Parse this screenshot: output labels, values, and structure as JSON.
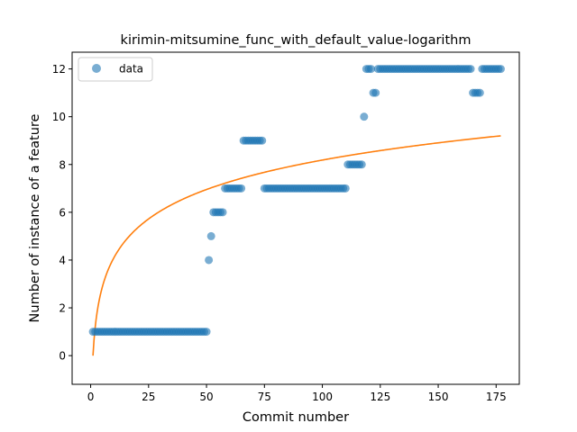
{
  "chart_data": {
    "type": "scatter",
    "title": "kirimin-mitsumine_func_with_default_value-logarithm",
    "xlabel": "Commit number",
    "ylabel": "Number of instance of a feature",
    "xlim": [
      -8,
      185
    ],
    "ylim": [
      -1.2,
      12.7
    ],
    "xticks": [
      0,
      25,
      50,
      75,
      100,
      125,
      150,
      175
    ],
    "yticks": [
      0,
      2,
      4,
      6,
      8,
      10,
      12
    ],
    "legend": {
      "position": "upper-left",
      "entries": [
        "data"
      ]
    },
    "colors": {
      "data": "#1f77b4",
      "fit": "#ff7f0e"
    },
    "series": [
      {
        "name": "data",
        "style": "markers",
        "runs": [
          {
            "x_start": 1,
            "x_end": 50,
            "y": 1
          },
          {
            "x_start": 51,
            "x_end": 51,
            "y": 4
          },
          {
            "x_start": 52,
            "x_end": 52,
            "y": 5
          },
          {
            "x_start": 53,
            "x_end": 57,
            "y": 6
          },
          {
            "x_start": 58,
            "x_end": 65,
            "y": 7
          },
          {
            "x_start": 66,
            "x_end": 74,
            "y": 9
          },
          {
            "x_start": 75,
            "x_end": 110,
            "y": 7
          },
          {
            "x_start": 111,
            "x_end": 117,
            "y": 8
          },
          {
            "x_start": 118,
            "x_end": 118,
            "y": 10
          },
          {
            "x_start": 119,
            "x_end": 121,
            "y": 12
          },
          {
            "x_start": 122,
            "x_end": 123,
            "y": 11
          },
          {
            "x_start": 124,
            "x_end": 164,
            "y": 12
          },
          {
            "x_start": 165,
            "x_end": 168,
            "y": 11
          },
          {
            "x_start": 169,
            "x_end": 177,
            "y": 12
          }
        ]
      },
      {
        "style": "line",
        "model": "logarithmic",
        "x_range": [
          1,
          177
        ],
        "y_start": 0,
        "y_end": 9.2
      }
    ]
  }
}
